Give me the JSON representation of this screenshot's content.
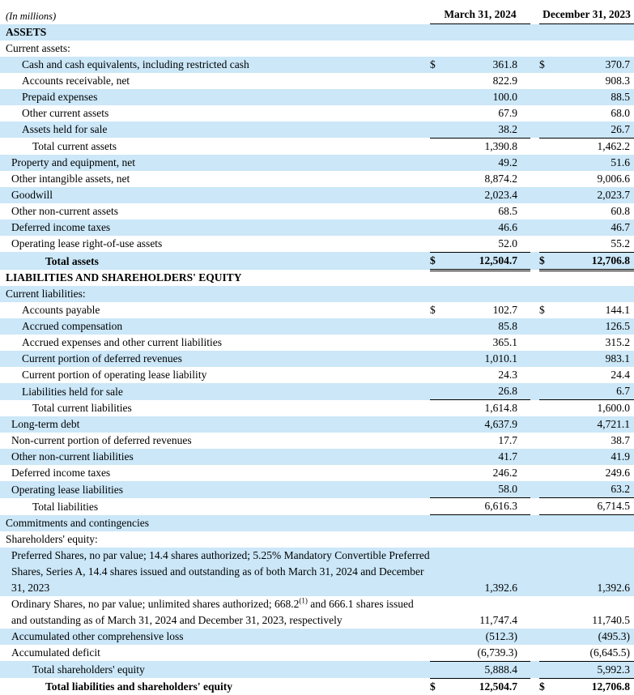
{
  "header": {
    "units_label": "(In millions)",
    "currency_symbol": "$",
    "columns": [
      "March 31, 2024",
      "December 31, 2023"
    ]
  },
  "rows": [
    {
      "label": "ASSETS",
      "indent": 0,
      "bold": true,
      "shade": true,
      "dollar": false,
      "v1": "",
      "v2": "",
      "rule": "none"
    },
    {
      "label": "Current assets:",
      "indent": 0,
      "bold": false,
      "shade": false,
      "dollar": false,
      "v1": "",
      "v2": "",
      "rule": "none"
    },
    {
      "label": "Cash and cash equivalents, including restricted cash",
      "indent": 2,
      "bold": false,
      "shade": true,
      "dollar": true,
      "v1": "361.8",
      "v2": "370.7",
      "rule": "none"
    },
    {
      "label": "Accounts receivable, net",
      "indent": 2,
      "bold": false,
      "shade": false,
      "dollar": false,
      "v1": "822.9",
      "v2": "908.3",
      "rule": "none"
    },
    {
      "label": "Prepaid expenses",
      "indent": 2,
      "bold": false,
      "shade": true,
      "dollar": false,
      "v1": "100.0",
      "v2": "88.5",
      "rule": "none"
    },
    {
      "label": "Other current assets",
      "indent": 2,
      "bold": false,
      "shade": false,
      "dollar": false,
      "v1": "67.9",
      "v2": "68.0",
      "rule": "none"
    },
    {
      "label": "Assets held for sale",
      "indent": 2,
      "bold": false,
      "shade": true,
      "dollar": false,
      "v1": "38.2",
      "v2": "26.7",
      "rule": "single"
    },
    {
      "label": "Total current assets",
      "indent": 3,
      "bold": false,
      "shade": false,
      "dollar": false,
      "v1": "1,390.8",
      "v2": "1,462.2",
      "rule": "none"
    },
    {
      "label": "Property and equipment, net",
      "indent": 1,
      "bold": false,
      "shade": true,
      "dollar": false,
      "v1": "49.2",
      "v2": "51.6",
      "rule": "none"
    },
    {
      "label": "Other intangible assets, net",
      "indent": 1,
      "bold": false,
      "shade": false,
      "dollar": false,
      "v1": "8,874.2",
      "v2": "9,006.6",
      "rule": "none"
    },
    {
      "label": "Goodwill",
      "indent": 1,
      "bold": false,
      "shade": true,
      "dollar": false,
      "v1": "2,023.4",
      "v2": "2,023.7",
      "rule": "none"
    },
    {
      "label": "Other non-current assets",
      "indent": 1,
      "bold": false,
      "shade": false,
      "dollar": false,
      "v1": "68.5",
      "v2": "60.8",
      "rule": "none"
    },
    {
      "label": "Deferred income taxes",
      "indent": 1,
      "bold": false,
      "shade": true,
      "dollar": false,
      "v1": "46.6",
      "v2": "46.7",
      "rule": "none"
    },
    {
      "label": "Operating lease right-of-use assets",
      "indent": 1,
      "bold": false,
      "shade": false,
      "dollar": false,
      "v1": "52.0",
      "v2": "55.2",
      "rule": "single"
    },
    {
      "label": "Total assets",
      "indent": 4,
      "bold": true,
      "shade": true,
      "dollar": true,
      "v1": "12,504.7",
      "v2": "12,706.8",
      "rule": "double"
    },
    {
      "label": "LIABILITIES AND SHAREHOLDERS' EQUITY",
      "indent": 0,
      "bold": true,
      "shade": false,
      "dollar": false,
      "v1": "",
      "v2": "",
      "rule": "none"
    },
    {
      "label": "Current liabilities:",
      "indent": 0,
      "bold": false,
      "shade": true,
      "dollar": false,
      "v1": "",
      "v2": "",
      "rule": "none"
    },
    {
      "label": "Accounts payable",
      "indent": 2,
      "bold": false,
      "shade": false,
      "dollar": true,
      "v1": "102.7",
      "v2": "144.1",
      "rule": "none"
    },
    {
      "label": "Accrued compensation",
      "indent": 2,
      "bold": false,
      "shade": true,
      "dollar": false,
      "v1": "85.8",
      "v2": "126.5",
      "rule": "none"
    },
    {
      "label": "Accrued expenses and other current liabilities",
      "indent": 2,
      "bold": false,
      "shade": false,
      "dollar": false,
      "v1": "365.1",
      "v2": "315.2",
      "rule": "none"
    },
    {
      "label": "Current portion of deferred revenues",
      "indent": 2,
      "bold": false,
      "shade": true,
      "dollar": false,
      "v1": "1,010.1",
      "v2": "983.1",
      "rule": "none"
    },
    {
      "label": "Current portion of operating lease liability",
      "indent": 2,
      "bold": false,
      "shade": false,
      "dollar": false,
      "v1": "24.3",
      "v2": "24.4",
      "rule": "none"
    },
    {
      "label": "Liabilities held for sale",
      "indent": 2,
      "bold": false,
      "shade": true,
      "dollar": false,
      "v1": "26.8",
      "v2": "6.7",
      "rule": "single"
    },
    {
      "label": "Total current liabilities",
      "indent": 3,
      "bold": false,
      "shade": false,
      "dollar": false,
      "v1": "1,614.8",
      "v2": "1,600.0",
      "rule": "none"
    },
    {
      "label": "Long-term debt",
      "indent": 1,
      "bold": false,
      "shade": true,
      "dollar": false,
      "v1": "4,637.9",
      "v2": "4,721.1",
      "rule": "none"
    },
    {
      "label": "Non-current portion of deferred revenues",
      "indent": 1,
      "bold": false,
      "shade": false,
      "dollar": false,
      "v1": "17.7",
      "v2": "38.7",
      "rule": "none"
    },
    {
      "label": "Other non-current liabilities",
      "indent": 1,
      "bold": false,
      "shade": true,
      "dollar": false,
      "v1": "41.7",
      "v2": "41.9",
      "rule": "none"
    },
    {
      "label": "Deferred income taxes",
      "indent": 1,
      "bold": false,
      "shade": false,
      "dollar": false,
      "v1": "246.2",
      "v2": "249.6",
      "rule": "none"
    },
    {
      "label": "Operating lease liabilities",
      "indent": 1,
      "bold": false,
      "shade": true,
      "dollar": false,
      "v1": "58.0",
      "v2": "63.2",
      "rule": "single"
    },
    {
      "label": "Total liabilities",
      "indent": 3,
      "bold": false,
      "shade": false,
      "dollar": false,
      "v1": "6,616.3",
      "v2": "6,714.5",
      "rule": "single"
    },
    {
      "label": "Commitments and contingencies",
      "indent": 0,
      "bold": false,
      "shade": true,
      "dollar": false,
      "v1": "",
      "v2": "",
      "rule": "none"
    },
    {
      "label": "Shareholders' equity:",
      "indent": 0,
      "bold": false,
      "shade": false,
      "dollar": false,
      "v1": "",
      "v2": "",
      "rule": "none"
    },
    {
      "label": "Preferred Shares, no par value; 14.4 shares authorized; 5.25% Mandatory Convertible Preferred Shares, Series A, 14.4 shares issued and outstanding as of both March 31, 2024 and December 31, 2023",
      "indent": 1,
      "bold": false,
      "shade": true,
      "dollar": false,
      "v1": "1,392.6",
      "v2": "1,392.6",
      "rule": "none"
    },
    {
      "label_pre": "Ordinary Shares, no par value; unlimited shares authorized; 668.2",
      "label_sup": "(1)",
      "label_post": " and 666.1 shares issued and outstanding as of March 31, 2024 and December 31, 2023, respectively",
      "indent": 1,
      "bold": false,
      "shade": false,
      "dollar": false,
      "v1": "11,747.4",
      "v2": "11,740.5",
      "rule": "none"
    },
    {
      "label": "Accumulated other comprehensive loss",
      "indent": 1,
      "bold": false,
      "shade": true,
      "dollar": false,
      "v1": "(512.3)",
      "v2": "(495.3)",
      "rule": "none"
    },
    {
      "label": "Accumulated deficit",
      "indent": 1,
      "bold": false,
      "shade": false,
      "dollar": false,
      "v1": "(6,739.3)",
      "v2": "(6,645.5)",
      "rule": "single"
    },
    {
      "label": "Total shareholders' equity",
      "indent": 3,
      "bold": false,
      "shade": true,
      "dollar": false,
      "v1": "5,888.4",
      "v2": "5,992.3",
      "rule": "single"
    },
    {
      "label": "Total liabilities and shareholders' equity",
      "indent": 4,
      "bold": true,
      "shade": false,
      "dollar": true,
      "v1": "12,504.7",
      "v2": "12,706.8",
      "rule": "none"
    }
  ]
}
